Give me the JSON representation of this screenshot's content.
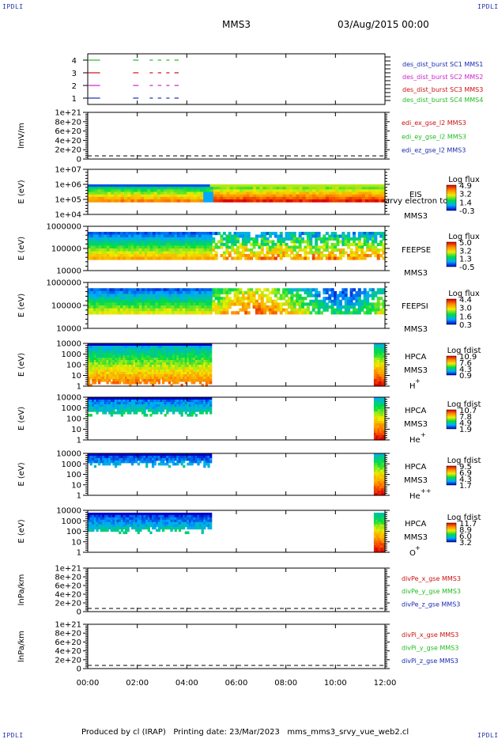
{
  "header": {
    "corner_label": "IPDLI",
    "spacecraft": "MMS3",
    "date_time": "03/Aug/2015 00:00"
  },
  "footer": {
    "text": "Produced by cl (IRAP)   Printing date: 23/Mar/2023   mms_mms3_srvy_vue_web2.cl"
  },
  "colors": {
    "mms1": "#1a2bb0",
    "mms2": "#cc22cc",
    "mms3": "#cc1111",
    "mms4": "#22bb22"
  },
  "chart_data": [
    {
      "type": "line",
      "panel": "burst-flags",
      "yticks": [
        "1",
        "2",
        "3",
        "4"
      ],
      "ylim": [
        0.5,
        4.5
      ],
      "xlabel": "",
      "series": [
        {
          "name": "des_dist_burst SC1 MMS1",
          "color": "#1a2bb0",
          "y": 1,
          "segments": [
            [
              0.0,
              0.5
            ],
            [
              1.83,
              2.05
            ],
            [
              2.5,
              2.63
            ],
            [
              2.83,
              2.97
            ],
            [
              3.17,
              3.3
            ],
            [
              3.5,
              3.67
            ]
          ]
        },
        {
          "name": "des_dist_burst SC2 MMS2",
          "color": "#cc22cc",
          "y": 2,
          "segments": [
            [
              0.0,
              0.5
            ],
            [
              1.83,
              2.05
            ],
            [
              2.5,
              2.63
            ],
            [
              2.83,
              2.97
            ],
            [
              3.17,
              3.3
            ],
            [
              3.5,
              3.67
            ]
          ]
        },
        {
          "name": "des_dist_burst SC3 MMS3",
          "color": "#cc1111",
          "y": 3,
          "segments": [
            [
              0.0,
              0.5
            ],
            [
              1.83,
              2.05
            ],
            [
              2.5,
              2.63
            ],
            [
              2.83,
              2.97
            ],
            [
              3.17,
              3.3
            ],
            [
              3.5,
              3.67
            ]
          ]
        },
        {
          "name": "des_dist_burst SC4 MMS4",
          "color": "#22bb22",
          "y": 4,
          "segments": [
            [
              0.0,
              0.5
            ],
            [
              1.83,
              2.05
            ],
            [
              2.5,
              2.63
            ],
            [
              2.83,
              2.97
            ],
            [
              3.17,
              3.3
            ],
            [
              3.5,
              3.67
            ]
          ]
        }
      ]
    },
    {
      "type": "line",
      "panel": "edi",
      "ylabel": "lmV/m",
      "yticks": [
        "0",
        "2e+20",
        "4e+20",
        "6e+20",
        "8e+20",
        "1e+21"
      ],
      "ylim": [
        0,
        1e+21
      ],
      "series": [
        {
          "name": "edi_ex_gse_l2 MMS3",
          "color": "#cc1111"
        },
        {
          "name": "edi_ey_gse_l2 MMS3",
          "color": "#22bb22"
        },
        {
          "name": "edi_ez_gse_l2 MMS3",
          "color": "#1a2bb0"
        }
      ],
      "zero_line": true
    },
    {
      "type": "heatmap",
      "panel": "eis",
      "ylabel": "E (eV)",
      "yticks": [
        "1e+04",
        "1e+05",
        "1e+06",
        "1e+07"
      ],
      "labels": [
        "EIS",
        "MMS3"
      ],
      "overlap_text": "arvy electron to",
      "colorbar": {
        "title": "Log flux",
        "values": [
          "4.9",
          "3.2",
          "1.4",
          "-0.3"
        ]
      }
    },
    {
      "type": "heatmap",
      "panel": "feepse",
      "ylabel": "E (eV)",
      "yticks": [
        "10000",
        "100000",
        "1000000"
      ],
      "labels": [
        "FEEPSE",
        "MMS3"
      ],
      "colorbar": {
        "title": "Log flux",
        "values": [
          "5.0",
          "3.2",
          "1.3",
          "-0.5"
        ]
      }
    },
    {
      "type": "heatmap",
      "panel": "feepsi",
      "ylabel": "E (eV)",
      "yticks": [
        "10000",
        "100000",
        "1000000"
      ],
      "labels": [
        "FEEPSI",
        "MMS3"
      ],
      "colorbar": {
        "title": "Log flux",
        "values": [
          "4.4",
          "3.0",
          "1.6",
          "0.3"
        ]
      }
    },
    {
      "type": "heatmap",
      "panel": "hpca-h",
      "ylabel": "E (eV)",
      "yticks": [
        "1",
        "10",
        "100",
        "1000",
        "10000"
      ],
      "labels": [
        "HPCA",
        "MMS3"
      ],
      "species": "H",
      "charge": "+",
      "colorbar": {
        "title": "Log fdist",
        "values": [
          "10.9",
          "7.6",
          "4.3",
          "0.9"
        ]
      }
    },
    {
      "type": "heatmap",
      "panel": "hpca-he",
      "ylabel": "E (eV)",
      "yticks": [
        "1",
        "10",
        "100",
        "1000",
        "10000"
      ],
      "labels": [
        "HPCA",
        "MMS3"
      ],
      "species": "He",
      "charge": "+",
      "colorbar": {
        "title": "Log fdist",
        "values": [
          "10.7",
          "7.8",
          "4.9",
          "1.9"
        ]
      }
    },
    {
      "type": "heatmap",
      "panel": "hpca-he2",
      "ylabel": "E (eV)",
      "yticks": [
        "1",
        "10",
        "100",
        "1000",
        "10000"
      ],
      "labels": [
        "HPCA",
        "MMS3"
      ],
      "species": "He",
      "charge": "++",
      "colorbar": {
        "title": "Log fdist",
        "values": [
          "9.5",
          "6.9",
          "4.3",
          "1.7"
        ]
      }
    },
    {
      "type": "heatmap",
      "panel": "hpca-o",
      "ylabel": "E (eV)",
      "yticks": [
        "1",
        "10",
        "100",
        "1000",
        "10000"
      ],
      "labels": [
        "HPCA",
        "MMS3"
      ],
      "species": "O",
      "charge": "+",
      "colorbar": {
        "title": "Log fdist",
        "values": [
          "11.7",
          "8.9",
          "6.0",
          "3.2"
        ]
      }
    },
    {
      "type": "line",
      "panel": "divpe",
      "ylabel": "lnPa/km",
      "yticks": [
        "0",
        "2e+20",
        "4e+20",
        "6e+20",
        "8e+20",
        "1e+21"
      ],
      "ylim": [
        0,
        1e+21
      ],
      "series": [
        {
          "name": "divPe_x_gse MMS3",
          "color": "#cc1111"
        },
        {
          "name": "divPe_y_gse MMS3",
          "color": "#22bb22"
        },
        {
          "name": "divPe_z_gse MMS3",
          "color": "#1a2bb0"
        }
      ],
      "zero_line": true
    },
    {
      "type": "line",
      "panel": "divpi",
      "ylabel": "lnPa/km",
      "yticks": [
        "0",
        "2e+20",
        "4e+20",
        "6e+20",
        "8e+20",
        "1e+21"
      ],
      "ylim": [
        0,
        1e+21
      ],
      "series": [
        {
          "name": "divPi_x_gse MMS3",
          "color": "#cc1111"
        },
        {
          "name": "divPi_y_gse MMS3",
          "color": "#22bb22"
        },
        {
          "name": "divPi_z_gse MMS3",
          "color": "#1a2bb0"
        }
      ],
      "zero_line": true
    }
  ],
  "x_axis": {
    "ticks": [
      "00:00",
      "02:00",
      "04:00",
      "06:00",
      "08:00",
      "10:00",
      "12:00"
    ],
    "xlim_hours": [
      0,
      12
    ]
  }
}
